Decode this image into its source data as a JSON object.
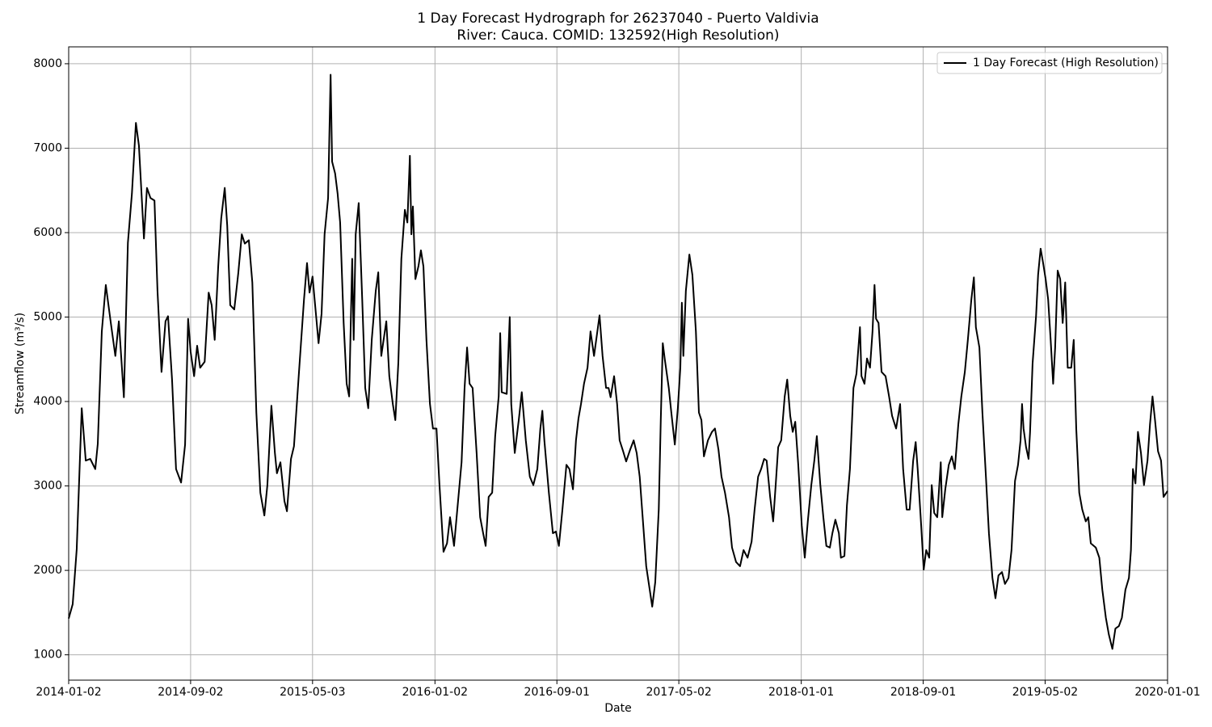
{
  "chart_data": {
    "type": "line",
    "title": [
      "1 Day Forecast Hydrograph for 26237040 - Puerto Valdivia",
      "River: Cauca. COMID: 132592(High Resolution)"
    ],
    "xlabel": "Date",
    "ylabel": "Streamflow (m³/s)",
    "xlim": [
      "2014-01-02",
      "2020-01-01"
    ],
    "xticks": [
      "2014-01-02",
      "2014-09-02",
      "2015-05-03",
      "2016-01-02",
      "2016-09-01",
      "2017-05-02",
      "2018-01-01",
      "2018-09-01",
      "2019-05-02",
      "2020-01-01"
    ],
    "ylim": [
      700,
      8200
    ],
    "yticks": [
      1000,
      2000,
      3000,
      4000,
      5000,
      6000,
      7000,
      8000
    ],
    "grid": true,
    "legend": "upper right",
    "x": [
      "2014-01-02",
      "2014-01-10",
      "2014-01-18",
      "2014-01-28",
      "2014-02-05",
      "2014-02-14",
      "2014-02-24",
      "2014-03-01",
      "2014-03-09",
      "2014-03-17",
      "2014-03-27",
      "2014-04-05",
      "2014-04-12",
      "2014-04-22",
      "2014-04-30",
      "2014-05-08",
      "2014-05-16",
      "2014-05-22",
      "2014-06-01",
      "2014-06-07",
      "2014-06-14",
      "2014-06-22",
      "2014-06-28",
      "2014-07-06",
      "2014-07-14",
      "2014-07-19",
      "2014-07-27",
      "2014-08-04",
      "2014-08-14",
      "2014-08-22",
      "2014-08-28",
      "2014-09-02",
      "2014-09-09",
      "2014-09-15",
      "2014-09-21",
      "2014-09-30",
      "2014-10-08",
      "2014-10-14",
      "2014-10-20",
      "2014-10-27",
      "2014-11-02",
      "2014-11-09",
      "2014-11-14",
      "2014-11-20",
      "2014-11-28",
      "2014-12-06",
      "2014-12-13",
      "2014-12-19",
      "2014-12-27",
      "2015-01-03",
      "2015-01-11",
      "2015-01-19",
      "2015-01-27",
      "2015-02-02",
      "2015-02-10",
      "2015-02-17",
      "2015-02-21",
      "2015-02-28",
      "2015-03-08",
      "2015-03-13",
      "2015-03-21",
      "2015-03-27",
      "2015-04-06",
      "2015-04-16",
      "2015-04-22",
      "2015-04-27",
      "2015-05-03",
      "2015-05-10",
      "2015-05-15",
      "2015-05-21",
      "2015-05-27",
      "2015-06-03",
      "2015-06-08",
      "2015-06-11",
      "2015-06-17",
      "2015-06-22",
      "2015-06-27",
      "2015-07-04",
      "2015-07-10",
      "2015-07-15",
      "2015-07-21",
      "2015-07-24",
      "2015-07-28",
      "2015-08-03",
      "2015-08-10",
      "2015-08-16",
      "2015-08-22",
      "2015-08-29",
      "2015-09-06",
      "2015-09-11",
      "2015-09-17",
      "2015-09-27",
      "2015-10-03",
      "2015-10-10",
      "2015-10-15",
      "2015-10-21",
      "2015-10-27",
      "2015-11-03",
      "2015-11-08",
      "2015-11-13",
      "2015-11-16",
      "2015-11-19",
      "2015-11-24",
      "2015-11-30",
      "2015-12-05",
      "2015-12-10",
      "2015-12-16",
      "2015-12-23",
      "2015-12-29",
      "2016-01-05",
      "2016-01-11",
      "2016-01-19",
      "2016-01-26",
      "2016-02-01",
      "2016-02-09",
      "2016-02-17",
      "2016-02-24",
      "2016-03-01",
      "2016-03-06",
      "2016-03-11",
      "2016-03-17",
      "2016-03-25",
      "2016-04-01",
      "2016-04-07",
      "2016-04-12",
      "2016-04-18",
      "2016-04-25",
      "2016-05-01",
      "2016-05-08",
      "2016-05-11",
      "2016-05-14",
      "2016-05-24",
      "2016-05-30",
      "2016-06-02",
      "2016-06-09",
      "2016-06-17",
      "2016-06-23",
      "2016-07-01",
      "2016-07-09",
      "2016-07-16",
      "2016-07-24",
      "2016-07-30",
      "2016-08-03",
      "2016-08-07",
      "2016-08-16",
      "2016-08-24",
      "2016-08-30",
      "2016-09-05",
      "2016-09-12",
      "2016-09-20",
      "2016-09-26",
      "2016-10-03",
      "2016-10-09",
      "2016-10-14",
      "2016-10-19",
      "2016-10-25",
      "2016-11-01",
      "2016-11-07",
      "2016-11-14",
      "2016-11-25",
      "2016-12-01",
      "2016-12-08",
      "2016-12-13",
      "2016-12-17",
      "2016-12-24",
      "2016-12-30",
      "2017-01-04",
      "2017-01-11",
      "2017-01-17",
      "2017-01-25",
      "2017-02-01",
      "2017-02-07",
      "2017-02-13",
      "2017-02-20",
      "2017-02-26",
      "2017-03-05",
      "2017-03-10",
      "2017-03-16",
      "2017-03-23",
      "2017-03-27",
      "2017-03-31",
      "2017-04-04",
      "2017-04-12",
      "2017-04-17",
      "2017-04-24",
      "2017-04-30",
      "2017-05-05",
      "2017-05-08",
      "2017-05-11",
      "2017-05-16",
      "2017-05-23",
      "2017-05-29",
      "2017-06-05",
      "2017-06-11",
      "2017-06-16",
      "2017-06-21",
      "2017-06-29",
      "2017-07-07",
      "2017-07-13",
      "2017-07-20",
      "2017-07-26",
      "2017-08-02",
      "2017-08-10",
      "2017-08-16",
      "2017-08-24",
      "2017-09-01",
      "2017-09-08",
      "2017-09-16",
      "2017-09-24",
      "2017-09-30",
      "2017-10-07",
      "2017-10-13",
      "2017-10-19",
      "2017-10-24",
      "2017-10-31",
      "2017-11-06",
      "2017-11-11",
      "2017-11-16",
      "2017-11-22",
      "2017-11-29",
      "2017-12-04",
      "2017-12-10",
      "2017-12-15",
      "2017-12-20",
      "2017-12-26",
      "2018-01-02",
      "2018-01-08",
      "2018-01-14",
      "2018-01-21",
      "2018-01-27",
      "2018-02-01",
      "2018-02-08",
      "2018-02-14",
      "2018-02-20",
      "2018-02-27",
      "2018-03-04",
      "2018-03-10",
      "2018-03-17",
      "2018-03-21",
      "2018-03-28",
      "2018-04-02",
      "2018-04-08",
      "2018-04-15",
      "2018-04-21",
      "2018-04-28",
      "2018-05-01",
      "2018-05-07",
      "2018-05-12",
      "2018-05-18",
      "2018-05-23",
      "2018-05-27",
      "2018-05-30",
      "2018-06-04",
      "2018-06-10",
      "2018-06-18",
      "2018-06-25",
      "2018-07-01",
      "2018-07-09",
      "2018-07-17",
      "2018-07-23",
      "2018-07-30",
      "2018-08-05",
      "2018-08-12",
      "2018-08-17",
      "2018-08-21",
      "2018-08-28",
      "2018-09-02",
      "2018-09-07",
      "2018-09-13",
      "2018-09-18",
      "2018-09-23",
      "2018-09-29",
      "2018-10-06",
      "2018-10-09",
      "2018-10-15",
      "2018-10-22",
      "2018-10-28",
      "2018-11-03",
      "2018-11-10",
      "2018-11-16",
      "2018-11-23",
      "2018-11-29",
      "2018-12-06",
      "2018-12-11",
      "2018-12-15",
      "2018-12-22",
      "2018-12-28",
      "2019-01-04",
      "2019-01-10",
      "2019-01-17",
      "2019-01-23",
      "2019-01-29",
      "2019-02-05",
      "2019-02-11",
      "2019-02-18",
      "2019-02-24",
      "2019-03-03",
      "2019-03-09",
      "2019-03-14",
      "2019-03-17",
      "2019-03-20",
      "2019-03-25",
      "2019-03-30",
      "2019-04-02",
      "2019-04-07",
      "2019-04-14",
      "2019-04-18",
      "2019-04-23",
      "2019-04-28",
      "2019-05-03",
      "2019-05-08",
      "2019-05-13",
      "2019-05-18",
      "2019-05-22",
      "2019-05-27",
      "2019-06-01",
      "2019-06-06",
      "2019-06-11",
      "2019-06-16",
      "2019-06-23",
      "2019-06-28",
      "2019-07-03",
      "2019-07-09",
      "2019-07-15",
      "2019-07-22",
      "2019-07-27",
      "2019-08-01",
      "2019-08-11",
      "2019-08-18",
      "2019-08-24",
      "2019-08-31",
      "2019-09-06",
      "2019-09-13",
      "2019-09-19",
      "2019-09-26",
      "2019-10-02",
      "2019-10-09",
      "2019-10-16",
      "2019-10-20",
      "2019-10-24",
      "2019-10-29",
      "2019-11-03",
      "2019-11-09",
      "2019-11-15",
      "2019-11-22",
      "2019-11-27",
      "2019-12-02",
      "2019-12-07",
      "2019-12-13",
      "2019-12-19",
      "2019-12-24",
      "2020-01-01"
    ],
    "series": [
      {
        "name": "1 Day Forecast (High Resolution)",
        "color": "#000000",
        "values": [
          1430,
          1600,
          2250,
          3920,
          3300,
          3320,
          3200,
          3500,
          4830,
          5380,
          4930,
          4540,
          4950,
          4050,
          5880,
          6460,
          7300,
          7030,
          5930,
          6530,
          6410,
          6380,
          5310,
          4350,
          4950,
          5010,
          4260,
          3200,
          3040,
          3490,
          4980,
          4590,
          4300,
          4660,
          4400,
          4470,
          5290,
          5140,
          4730,
          5600,
          6170,
          6530,
          6080,
          5140,
          5090,
          5520,
          5980,
          5870,
          5910,
          5410,
          3870,
          2920,
          2650,
          3010,
          3950,
          3390,
          3150,
          3280,
          2820,
          2700,
          3320,
          3470,
          4350,
          5210,
          5640,
          5290,
          5480,
          5020,
          4690,
          5040,
          5980,
          6410,
          7870,
          6840,
          6700,
          6460,
          6120,
          4930,
          4210,
          4060,
          5690,
          4730,
          5980,
          6350,
          5210,
          4160,
          3920,
          4730,
          5310,
          5530,
          4540,
          4950,
          4300,
          3970,
          3780,
          4460,
          5690,
          6270,
          6120,
          6910,
          5980,
          6310,
          5450,
          5600,
          5790,
          5600,
          4730,
          3970,
          3680,
          3680,
          3010,
          2220,
          2320,
          2630,
          2290,
          2820,
          3280,
          4160,
          4640,
          4210,
          4160,
          3390,
          2630,
          2440,
          2290,
          2870,
          2920,
          3590,
          4060,
          4810,
          4110,
          4090,
          5000,
          3970,
          3390,
          3780,
          4110,
          3540,
          3110,
          3010,
          3200,
          3680,
          3890,
          3540,
          2920,
          2440,
          2460,
          2290,
          2720,
          3250,
          3200,
          2960,
          3540,
          3800,
          3970,
          4210,
          4400,
          4830,
          4540,
          5020,
          4540,
          4160,
          4160,
          4050,
          4300,
          3970,
          3540,
          3410,
          3290,
          3430,
          3540,
          3390,
          3110,
          2540,
          2050,
          1770,
          1570,
          1860,
          2720,
          3780,
          4690,
          4500,
          4160,
          3870,
          3490,
          3920,
          4400,
          5170,
          4540,
          5310,
          5740,
          5500,
          4830,
          3870,
          3780,
          3350,
          3540,
          3640,
          3680,
          3430,
          3110,
          2920,
          2630,
          2270,
          2100,
          2050,
          2240,
          2150,
          2340,
          2720,
          3110,
          3200,
          3320,
          3300,
          2870,
          2580,
          3010,
          3460,
          3540,
          4060,
          4260,
          3830,
          3640,
          3760,
          3250,
          2530,
          2150,
          2580,
          3010,
          3300,
          3590,
          3010,
          2630,
          2290,
          2270,
          2440,
          2600,
          2440,
          2150,
          2170,
          2770,
          3200,
          4160,
          4330,
          4880,
          4300,
          4210,
          4510,
          4400,
          4830,
          5380,
          4980,
          4930,
          4350,
          4300,
          4060,
          3830,
          3680,
          3970,
          3200,
          2720,
          2720,
          3300,
          3520,
          3200,
          2530,
          2010,
          2240,
          2150,
          3010,
          2680,
          2630,
          3280,
          2630,
          2960,
          3250,
          3350,
          3200,
          3730,
          4060,
          4350,
          4730,
          5210,
          5470,
          4880,
          4640,
          3870,
          3110,
          2440,
          1910,
          1670,
          1940,
          1980,
          1840,
          1910,
          2240,
          3060,
          3250,
          3540,
          3970,
          3680,
          3460,
          3320,
          3640,
          4450,
          5020,
          5500,
          5810,
          5640,
          5450,
          5210,
          4730,
          4210,
          4640,
          5550,
          5450,
          4930,
          5410,
          4400,
          4400,
          4730,
          3680,
          2920,
          2720,
          2580,
          2630,
          2320,
          2270,
          2150,
          1770,
          1440,
          1240,
          1070,
          1310,
          1340,
          1440,
          1770,
          1910,
          2240,
          3200,
          3030,
          3640,
          3390,
          3010,
          3300,
          3730,
          4060,
          3780,
          3410,
          3300,
          2870,
          2940
        ]
      }
    ]
  }
}
